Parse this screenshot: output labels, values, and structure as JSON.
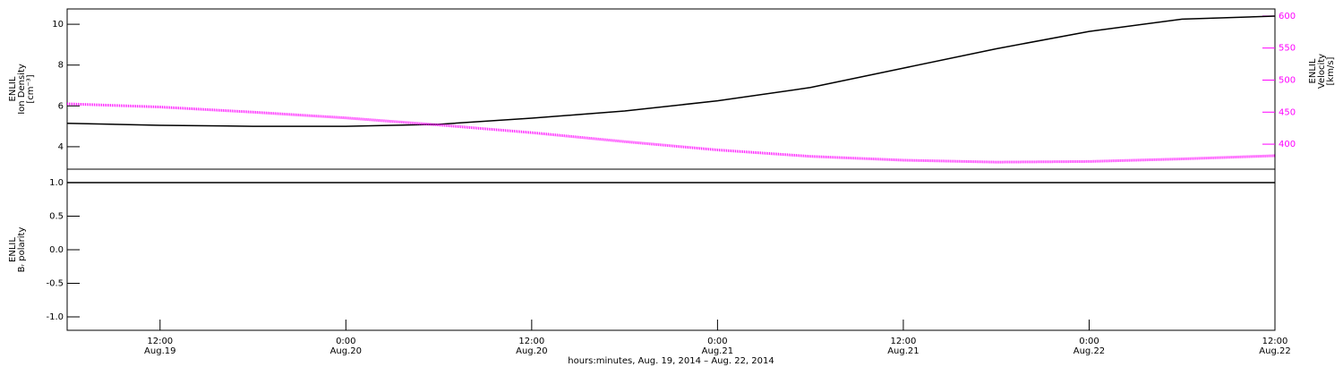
{
  "chart_data": [
    {
      "type": "line",
      "y_label": [
        "ENLIL",
        "Ion Density",
        "[cm⁻³]"
      ],
      "y2_label": [
        "ENLIL",
        "Velocity",
        "[km/s]"
      ],
      "x": [
        6,
        12,
        18,
        24,
        30,
        36,
        42,
        48,
        54,
        60,
        66,
        72,
        78,
        84
      ],
      "xlim": [
        6,
        84
      ],
      "ylim": [
        2.9,
        10.75
      ],
      "yticks": [
        4,
        6,
        8,
        10
      ],
      "y2lim": [
        361,
        611
      ],
      "y2ticks": [
        400,
        450,
        500,
        550,
        600
      ],
      "series": [
        {
          "name": "Ion Density",
          "color": "#000000",
          "values": [
            5.15,
            5.05,
            5.0,
            5.0,
            5.1,
            5.4,
            5.75,
            6.25,
            6.9,
            7.85,
            8.8,
            9.65,
            10.25,
            10.4
          ]
        },
        {
          "name": "Velocity",
          "color": "#ff00ff",
          "axis": "y2",
          "values": [
            463,
            458,
            450,
            441,
            430,
            418,
            404,
            391,
            381,
            375,
            372,
            373,
            377,
            382
          ]
        }
      ]
    },
    {
      "type": "line",
      "y_label": [
        "ENLIL",
        "Bᵣ polarity"
      ],
      "x_label": "hours:minutes, Aug. 19, 2014 – Aug. 22, 2014",
      "x": [
        6,
        12,
        18,
        24,
        30,
        36,
        42,
        48,
        54,
        60,
        66,
        72,
        78,
        84
      ],
      "xlim": [
        6,
        84
      ],
      "xticks": [
        {
          "value": 12,
          "label": "12:00",
          "date": "Aug.19"
        },
        {
          "value": 24,
          "label": "0:00",
          "date": "Aug.20"
        },
        {
          "value": 36,
          "label": "12:00",
          "date": "Aug.20"
        },
        {
          "value": 48,
          "label": "0:00",
          "date": "Aug.21"
        },
        {
          "value": 60,
          "label": "12:00",
          "date": "Aug.21"
        },
        {
          "value": 72,
          "label": "0:00",
          "date": "Aug.22"
        },
        {
          "value": 84,
          "label": "12:00",
          "date": "Aug.22"
        }
      ],
      "ylim": [
        -1.2,
        1.2
      ],
      "yticks": [
        {
          "value": -1,
          "label": "-1.0"
        },
        -0.5,
        {
          "value": 0,
          "label": "0.0"
        },
        0.5,
        {
          "value": 1,
          "label": "1.0"
        }
      ],
      "series": [
        {
          "name": "Br polarity",
          "color": "#000000",
          "values": [
            1,
            1,
            1,
            1,
            1,
            1,
            1,
            1,
            1,
            1,
            1,
            1,
            1,
            1
          ]
        }
      ]
    }
  ]
}
